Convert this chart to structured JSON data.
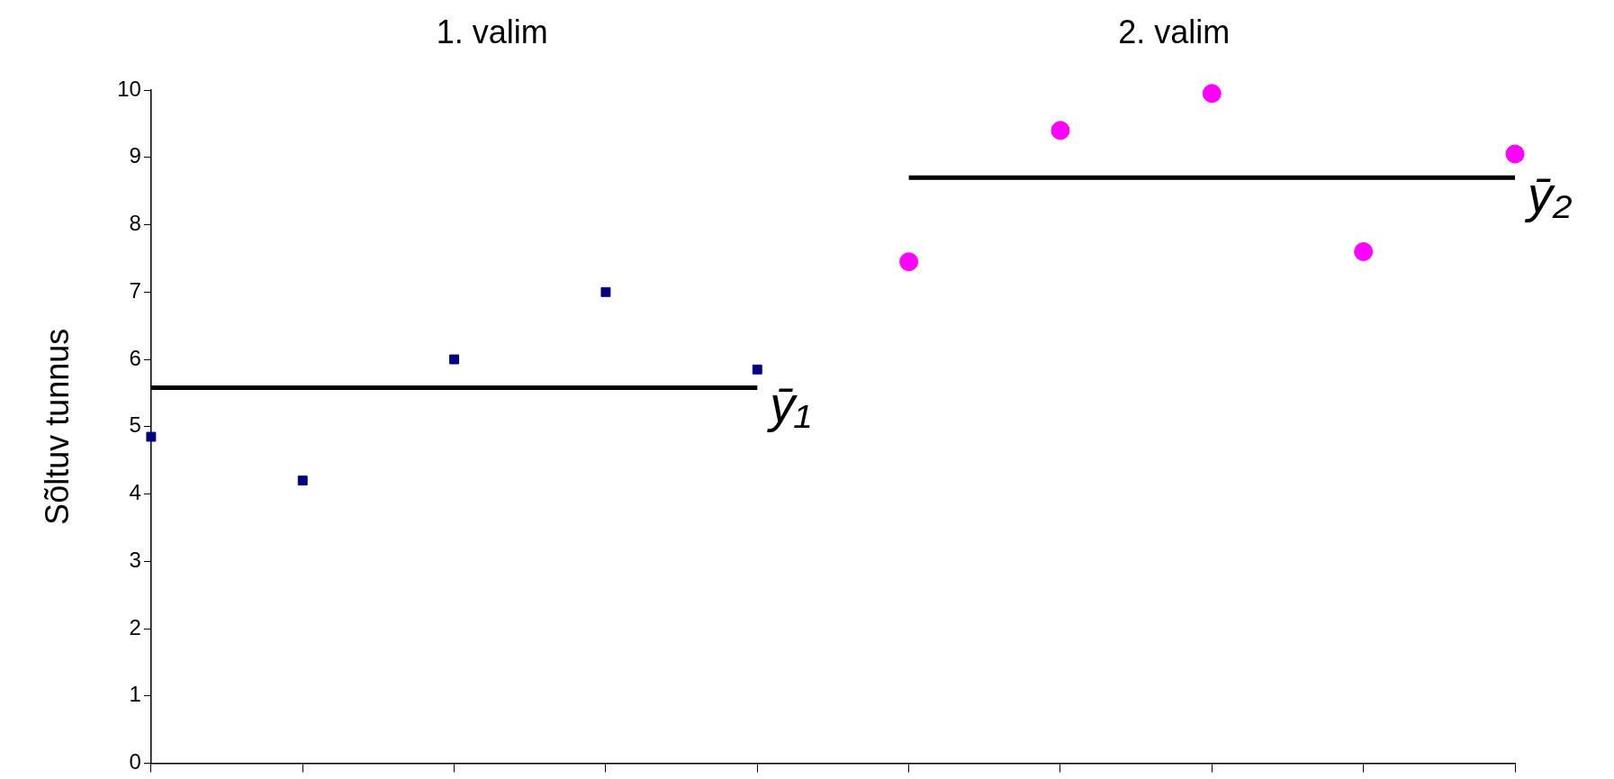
{
  "chart_data": {
    "type": "scatter",
    "ylabel": "Sõltuv tunnus",
    "annotations": [
      "1. valim",
      "2. valim"
    ],
    "categories": [
      null,
      null,
      null,
      null,
      null,
      null,
      null,
      null,
      null,
      null
    ],
    "series": [
      {
        "type": "scatter",
        "color": "#000080",
        "marker": "square",
        "values": [
          4.85,
          4.2,
          6.0,
          7.0,
          5.85,
          null,
          null,
          null,
          null,
          null
        ]
      },
      {
        "type": "scatter",
        "color": "#ff00ff",
        "marker": "circle",
        "values": [
          null,
          null,
          null,
          null,
          null,
          7.45,
          9.4,
          9.95,
          7.6,
          9.05
        ]
      },
      {
        "type": "line",
        "name": "ȳ₁",
        "color": "#000000",
        "marker": "none",
        "line_style": "solid",
        "values": [
          5.58,
          5.58,
          5.58,
          5.58,
          5.58,
          null,
          null,
          null,
          null,
          null
        ]
      },
      {
        "type": "line",
        "name": "ȳ₂",
        "color": "#000000",
        "marker": "none",
        "line_style": "solid",
        "values": [
          null,
          null,
          null,
          null,
          null,
          8.7,
          8.7,
          8.7,
          8.7,
          8.7
        ]
      }
    ],
    "ylim": [
      0,
      10
    ],
    "yticks": [
      0,
      1,
      2,
      3,
      4,
      5,
      6,
      7,
      8,
      9,
      10
    ],
    "grid": false,
    "legend": false,
    "tick_labels": "y"
  }
}
